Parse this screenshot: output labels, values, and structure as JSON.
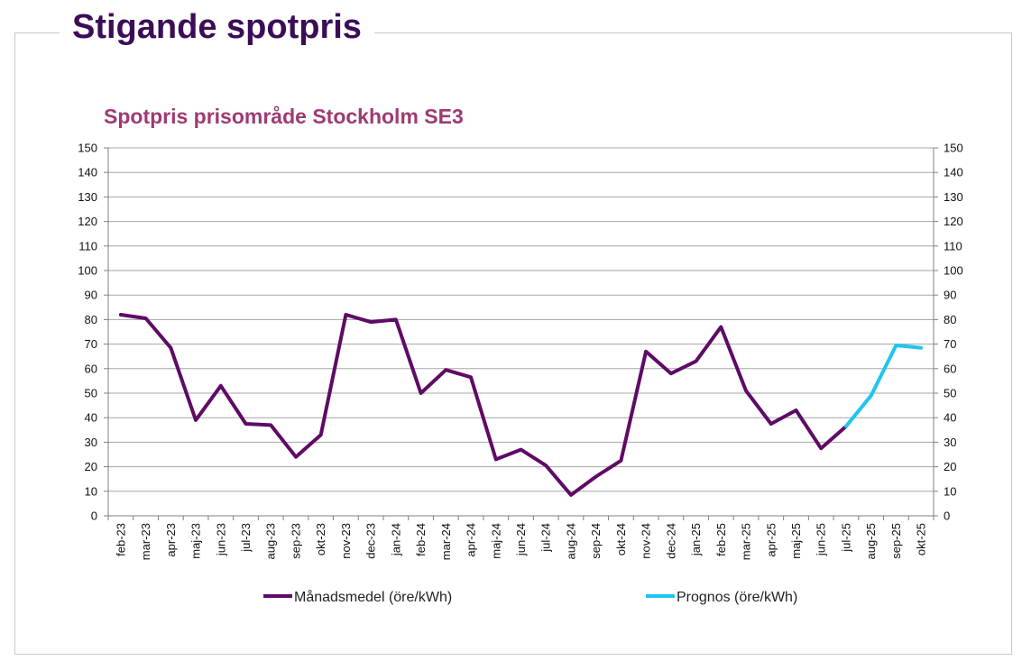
{
  "page": {
    "heading": "Stigande spotpris"
  },
  "colors": {
    "heading": "#3c0d57",
    "chart_title": "#9e3a73",
    "actual": "#5e0a66",
    "forecast": "#1ec6ef",
    "grid": "#a6a6a6"
  },
  "chart_data": {
    "type": "line",
    "title": "Spotpris prisområde Stockholm SE3",
    "xlabel": "",
    "ylabel": "",
    "ylim": [
      0,
      150
    ],
    "yticks": [
      0,
      10,
      20,
      30,
      40,
      50,
      60,
      70,
      80,
      90,
      100,
      110,
      120,
      130,
      140,
      150
    ],
    "secondary_axis": true,
    "grid": true,
    "legend_position": "bottom",
    "categories": [
      "feb-23",
      "mar-23",
      "apr-23",
      "maj-23",
      "jun-23",
      "jul-23",
      "aug-23",
      "sep-23",
      "okt-23",
      "nov-23",
      "dec-23",
      "jan-24",
      "feb-24",
      "mar-24",
      "apr-24",
      "maj-24",
      "jun-24",
      "jul-24",
      "aug-24",
      "sep-24",
      "okt-24",
      "nov-24",
      "dec-24",
      "jan-25",
      "feb-25",
      "mar-25",
      "apr-25",
      "maj-25",
      "jun-25",
      "jul-25",
      "aug-25",
      "sep-25",
      "okt-25"
    ],
    "series": [
      {
        "name": "Månadsmedel (öre/kWh)",
        "color": "#5e0a66",
        "values": [
          82,
          80.5,
          68.5,
          39,
          53,
          37.5,
          37,
          24,
          33,
          82,
          79,
          80,
          50,
          59.5,
          56.5,
          23,
          27,
          20.5,
          8.5,
          16,
          22.5,
          67,
          58,
          63,
          77,
          51,
          37.5,
          43,
          27.5,
          36.5,
          null,
          null,
          null
        ]
      },
      {
        "name": "Prognos (öre/kWh)",
        "color": "#1ec6ef",
        "values": [
          null,
          null,
          null,
          null,
          null,
          null,
          null,
          null,
          null,
          null,
          null,
          null,
          null,
          null,
          null,
          null,
          null,
          null,
          null,
          null,
          null,
          null,
          null,
          null,
          null,
          null,
          null,
          null,
          null,
          36.5,
          49,
          69.5,
          68.5
        ]
      }
    ]
  }
}
